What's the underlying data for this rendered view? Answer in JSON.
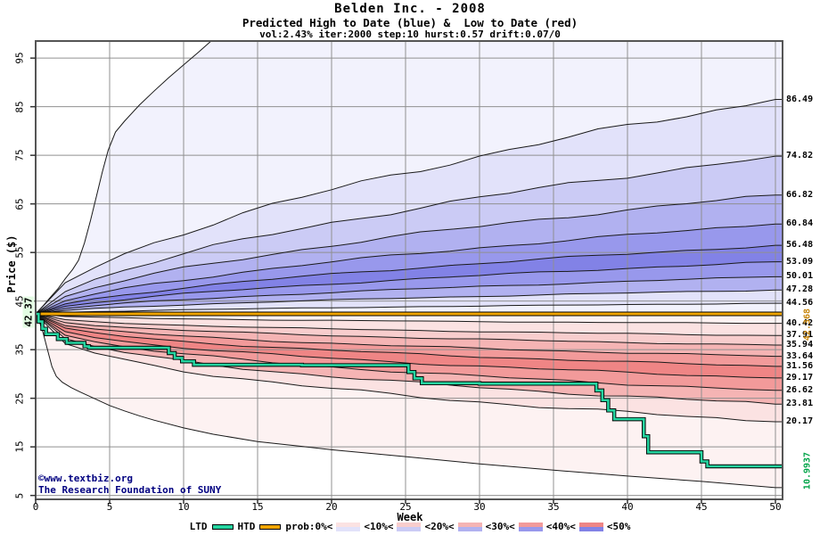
{
  "header": {
    "title": "Belden Inc. - 2008",
    "subtitle": "Predicted High to Date (blue) &  Low to Date (red)",
    "params": "vol:2.43% iter:2000 step:10 hurst:0.57 drift:0.07/0"
  },
  "axes": {
    "y_label": "Price ($)",
    "x_label": "Week",
    "y_ticks": [
      95,
      85,
      75,
      65,
      55,
      45,
      35,
      25,
      15,
      5
    ],
    "x_ticks": [
      0,
      5,
      10,
      15,
      20,
      25,
      30,
      35,
      40,
      45,
      50
    ]
  },
  "annotations": {
    "start_label": "42.37",
    "htd_label": "42.368",
    "ltd_label": "10.9937"
  },
  "copyright": {
    "line1": "©www.textbiz.org",
    "line2": "The Research Foundation of SUNY"
  },
  "legend": {
    "ltd": "LTD",
    "htd": "HTD",
    "prob_labels": [
      "prob:0%<",
      "<10%<",
      "<20%<",
      "<30%<",
      "<40%<",
      "<50%"
    ]
  },
  "chart_data": {
    "type": "area",
    "title": "Belden Inc. - 2008",
    "xlabel": "Week",
    "ylabel": "Price ($)",
    "x_range": [
      0,
      50
    ],
    "y_tick_range": [
      5,
      95
    ],
    "start_price": 42.37,
    "htd_value": 42.368,
    "ltd_final": 10.9937,
    "high_band_ends": [
      86.49,
      74.82,
      66.82,
      60.84,
      56.48,
      53.09,
      50.01,
      47.28,
      44.56
    ],
    "low_band_ends": [
      40.42,
      37.91,
      35.94,
      33.64,
      31.56,
      29.17,
      26.62,
      23.81,
      20.17
    ],
    "high_band_shades": [
      0,
      1,
      2,
      3,
      4,
      5,
      4,
      3,
      1,
      0
    ],
    "low_band_shades": [
      0,
      1,
      2,
      3,
      4,
      5,
      4,
      3,
      1,
      0
    ],
    "high_exponent": 0.6,
    "low_exponent": 0.4,
    "envelope_high": [
      [
        0,
        42.37
      ],
      [
        0.5,
        44.0
      ],
      [
        1.0,
        45.8
      ],
      [
        1.5,
        47.5
      ],
      [
        2.0,
        49.6
      ],
      [
        2.5,
        51.5
      ],
      [
        2.9,
        53.4
      ],
      [
        3.3,
        57.0
      ],
      [
        3.7,
        61.5
      ],
      [
        4.1,
        66.5
      ],
      [
        4.5,
        71.5
      ],
      [
        4.9,
        76.0
      ],
      [
        5.4,
        79.8
      ],
      [
        6.0,
        82.0
      ],
      [
        7.0,
        85.3
      ],
      [
        8.0,
        88.2
      ],
      [
        9.0,
        91.0
      ],
      [
        10.0,
        93.6
      ],
      [
        11.0,
        96.2
      ],
      [
        12.0,
        98.9
      ],
      [
        13.5,
        101.0
      ],
      [
        20,
        103.5
      ],
      [
        35,
        104.5
      ],
      [
        50,
        105.0
      ]
    ],
    "envelope_low": [
      [
        0,
        42.37
      ],
      [
        0.25,
        40.8
      ],
      [
        0.5,
        38.5
      ],
      [
        0.8,
        35.0
      ],
      [
        1.1,
        31.5
      ],
      [
        1.4,
        29.5
      ],
      [
        1.8,
        28.3
      ],
      [
        2.4,
        27.2
      ],
      [
        3.0,
        26.3
      ],
      [
        4.0,
        24.9
      ],
      [
        5.0,
        23.5
      ],
      [
        6.0,
        22.4
      ],
      [
        7.0,
        21.4
      ],
      [
        8.0,
        20.5
      ],
      [
        10.0,
        18.9
      ],
      [
        12.0,
        17.6
      ],
      [
        15.0,
        16.1
      ],
      [
        18.0,
        15.1
      ],
      [
        20.0,
        14.4
      ],
      [
        25.0,
        13.0
      ],
      [
        30.0,
        11.5
      ],
      [
        35.0,
        10.2
      ],
      [
        40.0,
        9.0
      ],
      [
        45.0,
        7.9
      ],
      [
        50.0,
        6.6
      ]
    ],
    "ltd_steps": [
      [
        0,
        42.37
      ],
      [
        0.2,
        40.8
      ],
      [
        0.45,
        39.3
      ],
      [
        0.7,
        38.2
      ],
      [
        1.5,
        37.2
      ],
      [
        2.1,
        36.4
      ],
      [
        3.3,
        35.7
      ],
      [
        3.6,
        35.4
      ],
      [
        9.0,
        34.3
      ],
      [
        9.4,
        33.3
      ],
      [
        9.9,
        32.6
      ],
      [
        10.7,
        31.9
      ],
      [
        18.0,
        31.8
      ],
      [
        25.2,
        30.4
      ],
      [
        25.6,
        29.1
      ],
      [
        26.1,
        28.1
      ],
      [
        30.0,
        28.0
      ],
      [
        37.9,
        26.6
      ],
      [
        38.3,
        24.6
      ],
      [
        38.7,
        22.5
      ],
      [
        39.1,
        20.7
      ],
      [
        41.1,
        17.2
      ],
      [
        41.4,
        13.9
      ],
      [
        45.0,
        12.0
      ],
      [
        45.4,
        10.99
      ],
      [
        50,
        10.99
      ]
    ],
    "colors": {
      "blue_shades": [
        "#f2f2fd",
        "#e2e2fa",
        "#cbcbf5",
        "#b1b1f0",
        "#9898ec",
        "#8282e6"
      ],
      "red_shades": [
        "#fdf2f2",
        "#fbe2e2",
        "#f8cdcd",
        "#f5b4b4",
        "#f29a9a",
        "#ef8585"
      ],
      "ltd": "#25d4a0",
      "htd": "#f0a500",
      "grid": "#909090",
      "boundary": "#1a1a1a",
      "border": "#555555"
    }
  }
}
